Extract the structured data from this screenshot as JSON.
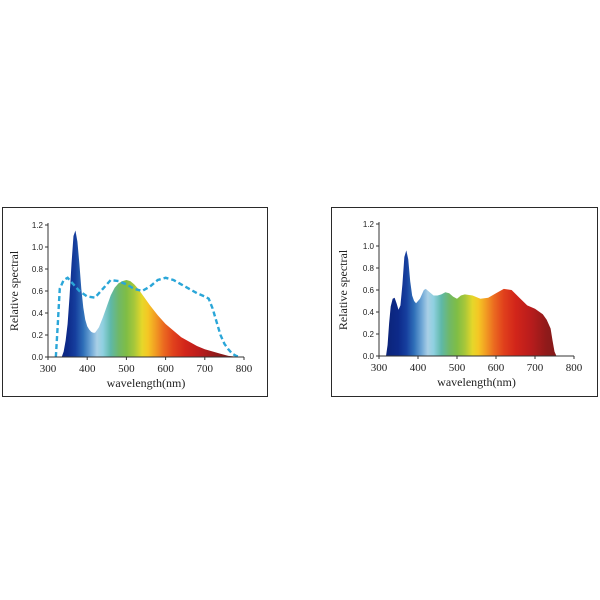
{
  "chart_data": [
    {
      "type": "area",
      "ylabel": "Relative spectral",
      "xlabel": "wavelength(nm)",
      "xlim": [
        300,
        800
      ],
      "ylim": [
        0,
        1.2
      ],
      "x_ticks": [
        "300",
        "400",
        "500",
        "600",
        "700",
        "800"
      ],
      "y_ticks": [
        "0.0",
        "0.2",
        "0.4",
        "0.6",
        "0.8",
        "1.0",
        "1.2"
      ],
      "fill_gradient": "visible-spectrum",
      "series": [
        {
          "style": "filled-spectrum",
          "x": [
            335,
            340,
            345,
            350,
            355,
            360,
            365,
            370,
            375,
            380,
            385,
            390,
            395,
            400,
            405,
            410,
            415,
            420,
            430,
            440,
            450,
            460,
            470,
            480,
            490,
            500,
            510,
            520,
            530,
            540,
            550,
            560,
            580,
            600,
            620,
            640,
            660,
            680,
            700,
            720,
            740,
            760,
            780,
            795
          ],
          "y": [
            0.0,
            0.05,
            0.15,
            0.3,
            0.55,
            0.85,
            1.1,
            1.15,
            1.05,
            0.85,
            0.62,
            0.45,
            0.34,
            0.28,
            0.25,
            0.23,
            0.22,
            0.22,
            0.27,
            0.36,
            0.46,
            0.56,
            0.63,
            0.67,
            0.69,
            0.7,
            0.69,
            0.66,
            0.62,
            0.57,
            0.52,
            0.47,
            0.38,
            0.3,
            0.24,
            0.18,
            0.14,
            0.1,
            0.07,
            0.05,
            0.03,
            0.01,
            0.003,
            0.0
          ]
        },
        {
          "style": "dashed",
          "color": "#2aa6d8",
          "x": [
            320,
            325,
            330,
            340,
            350,
            360,
            380,
            400,
            420,
            440,
            460,
            480,
            500,
            520,
            540,
            560,
            580,
            600,
            620,
            640,
            660,
            680,
            700,
            710,
            720,
            730,
            740,
            750,
            760,
            770,
            780,
            790
          ],
          "y": [
            0.0,
            0.3,
            0.62,
            0.7,
            0.72,
            0.68,
            0.6,
            0.55,
            0.54,
            0.62,
            0.7,
            0.69,
            0.66,
            0.62,
            0.6,
            0.64,
            0.7,
            0.72,
            0.7,
            0.66,
            0.62,
            0.58,
            0.55,
            0.53,
            0.44,
            0.32,
            0.2,
            0.12,
            0.07,
            0.03,
            0.01,
            0.0
          ]
        }
      ]
    },
    {
      "type": "area",
      "ylabel": "Relative spectral",
      "xlabel": "wavelength(nm)",
      "xlim": [
        300,
        800
      ],
      "ylim": [
        0,
        1.2
      ],
      "x_ticks": [
        "300",
        "400",
        "500",
        "600",
        "700",
        "800"
      ],
      "y_ticks": [
        "0.0",
        "0.2",
        "0.4",
        "0.6",
        "0.8",
        "1.0",
        "1.2"
      ],
      "fill_gradient": "visible-spectrum",
      "series": [
        {
          "style": "filled-spectrum",
          "x": [
            318,
            322,
            326,
            330,
            335,
            340,
            345,
            350,
            355,
            360,
            365,
            370,
            375,
            380,
            385,
            390,
            395,
            400,
            405,
            410,
            415,
            420,
            430,
            440,
            450,
            460,
            470,
            480,
            490,
            500,
            510,
            520,
            540,
            560,
            580,
            600,
            620,
            640,
            660,
            680,
            700,
            720,
            730,
            740,
            745,
            750,
            755
          ],
          "y": [
            0.0,
            0.1,
            0.3,
            0.45,
            0.52,
            0.53,
            0.48,
            0.42,
            0.46,
            0.65,
            0.9,
            0.96,
            0.88,
            0.68,
            0.55,
            0.5,
            0.48,
            0.5,
            0.52,
            0.56,
            0.6,
            0.61,
            0.58,
            0.55,
            0.55,
            0.56,
            0.58,
            0.57,
            0.54,
            0.52,
            0.55,
            0.56,
            0.55,
            0.52,
            0.53,
            0.57,
            0.61,
            0.6,
            0.53,
            0.46,
            0.43,
            0.38,
            0.33,
            0.25,
            0.14,
            0.04,
            0.0
          ]
        }
      ]
    }
  ]
}
